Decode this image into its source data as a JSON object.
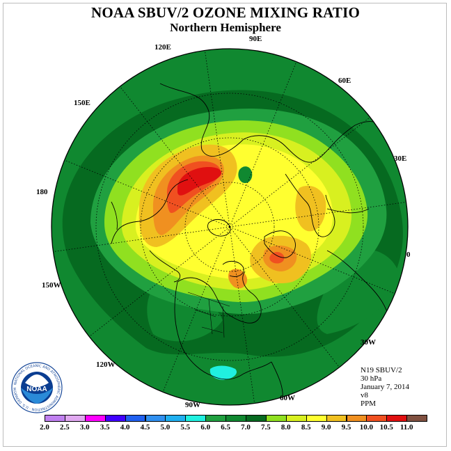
{
  "title": "NOAA SBUV/2 OZONE MIXING RATIO",
  "subtitle": "Northern Hemisphere",
  "longitude_labels": [
    {
      "id": "120e",
      "text": "120E"
    },
    {
      "id": "90e",
      "text": "90E"
    },
    {
      "id": "60e",
      "text": "60E"
    },
    {
      "id": "150e",
      "text": "150E"
    },
    {
      "id": "30e",
      "text": "30E"
    },
    {
      "id": "180",
      "text": "180"
    },
    {
      "id": "0",
      "text": "0"
    },
    {
      "id": "150w",
      "text": "150W"
    },
    {
      "id": "30w",
      "text": "30W"
    },
    {
      "id": "120w",
      "text": "120W"
    },
    {
      "id": "90w",
      "text": "90W"
    },
    {
      "id": "60w",
      "text": "60W"
    }
  ],
  "info": {
    "instrument": "N19 SBUV/2",
    "level": "30 hPa",
    "date": "January 7, 2014",
    "version": "v8",
    "units": "PPM"
  },
  "logo": {
    "text": "NOAA",
    "ring_text": "NATIONAL OCEANIC AND ATMOSPHERIC ADMINISTRATION · U.S. DEPARTMENT OF COMMERCE"
  },
  "colorbar": {
    "ticks": [
      "2.0",
      "2.5",
      "3.0",
      "3.5",
      "4.0",
      "4.5",
      "5.0",
      "5.5",
      "6.0",
      "6.5",
      "7.0",
      "7.5",
      "8.0",
      "8.5",
      "9.0",
      "9.5",
      "10.0",
      "10.5",
      "11.0"
    ],
    "colors": [
      "#c080f0",
      "#e0a8f0",
      "#ff00ff",
      "#4000ff",
      "#2060f0",
      "#3090f0",
      "#20b0f0",
      "#20f0e0",
      "#20a040",
      "#108830",
      "#066a20",
      "#90e020",
      "#d8f020",
      "#ffff30",
      "#f0c020",
      "#f09020",
      "#f05020",
      "#e01010",
      "#805040"
    ]
  },
  "map_colors": {
    "ocean_outer": "#108830",
    "band_dark": "#066a20",
    "band_mid": "#20a040",
    "light_green": "#90e020",
    "yellow_green": "#d8f020",
    "yellow": "#ffff30",
    "gold": "#f0c020",
    "orange": "#f09020",
    "red_orange": "#f05020",
    "red": "#e01010",
    "cyan": "#20f0e0"
  }
}
